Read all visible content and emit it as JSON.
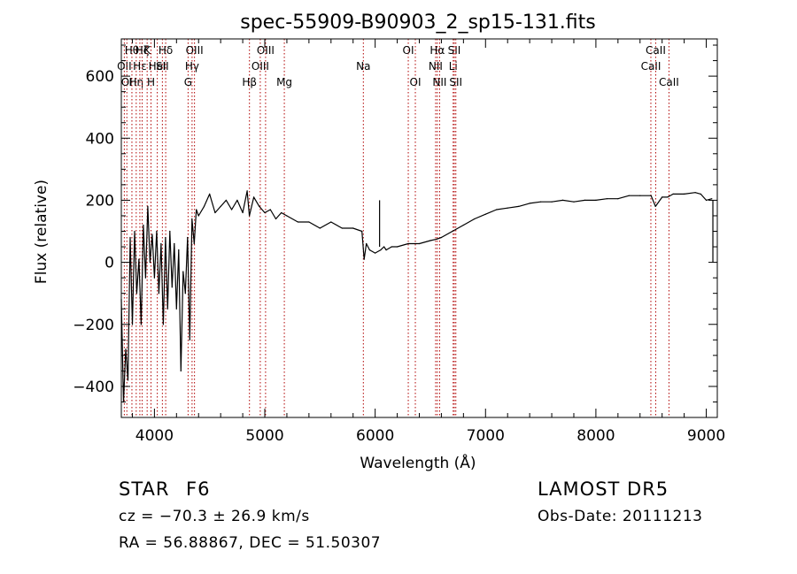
{
  "chart_data": {
    "type": "line",
    "title": "spec-55909-B90903_2_sp15-131.fits",
    "xlabel": "Wavelength (Å)",
    "ylabel": "Flux (relative)",
    "xlim": [
      3700,
      9100
    ],
    "ylim": [
      -500,
      720
    ],
    "x_ticks": [
      4000,
      5000,
      6000,
      7000,
      8000,
      9000
    ],
    "y_ticks": [
      -400,
      -200,
      0,
      200,
      400,
      600
    ],
    "series": [
      {
        "x": [
          3700,
          3720,
          3740,
          3760,
          3780,
          3800,
          3820,
          3840,
          3860,
          3880,
          3900,
          3920,
          3940,
          3960,
          3980,
          4000,
          4020,
          4040,
          4060,
          4080,
          4100,
          4120,
          4140,
          4160,
          4180,
          4200,
          4220,
          4240,
          4260,
          4280,
          4300,
          4320,
          4340,
          4360,
          4380,
          4400,
          4450,
          4500,
          4550,
          4600,
          4650,
          4700,
          4750,
          4800,
          4840,
          4860,
          4900,
          4950,
          5000,
          5050,
          5100,
          5150,
          5200,
          5300,
          5400,
          5500,
          5600,
          5700,
          5800,
          5880,
          5900,
          5920,
          5950,
          6000,
          6050,
          6080,
          6100,
          6150,
          6200,
          6300,
          6400,
          6500,
          6560,
          6600,
          6700,
          6800,
          6900,
          7000,
          7100,
          7200,
          7300,
          7400,
          7500,
          7600,
          7700,
          7800,
          7900,
          8000,
          8100,
          8200,
          8300,
          8400,
          8500,
          8540,
          8600,
          8650,
          8700,
          8800,
          8900,
          8950,
          9000,
          9050
        ],
        "y": [
          -120,
          -450,
          -280,
          -380,
          80,
          -200,
          100,
          -100,
          10,
          -200,
          120,
          -50,
          180,
          0,
          90,
          -50,
          100,
          -100,
          60,
          -200,
          80,
          -150,
          100,
          -80,
          60,
          -150,
          40,
          -350,
          -30,
          -100,
          80,
          -250,
          140,
          60,
          170,
          150,
          180,
          220,
          160,
          180,
          200,
          170,
          200,
          160,
          230,
          150,
          210,
          180,
          160,
          170,
          140,
          160,
          150,
          130,
          130,
          110,
          130,
          110,
          110,
          100,
          10,
          60,
          40,
          30,
          40,
          50,
          40,
          50,
          50,
          60,
          60,
          70,
          75,
          80,
          100,
          120,
          140,
          155,
          170,
          175,
          180,
          190,
          195,
          195,
          200,
          195,
          200,
          200,
          205,
          205,
          215,
          215,
          215,
          180,
          210,
          210,
          220,
          220,
          225,
          220,
          200,
          205
        ]
      }
    ],
    "spike": {
      "x": 6040,
      "y_from": 50,
      "y_to": 200
    },
    "tail_line": {
      "x": 9060,
      "y_from": 0,
      "y_to": 200
    },
    "lines": [
      {
        "x": 3727,
        "label": "OII",
        "row": 1
      },
      {
        "x": 3750,
        "label": "OI",
        "row": 2
      },
      {
        "x": 3796,
        "label": "Hθ",
        "row": 0
      },
      {
        "x": 3835,
        "label": "Hη",
        "row": 2
      },
      {
        "x": 3868,
        "label": "Hε",
        "row": 1
      },
      {
        "x": 3889,
        "label": "Hζ",
        "row": 0
      },
      {
        "x": 3934,
        "label": "K",
        "row": 0
      },
      {
        "x": 3969,
        "label": "H",
        "row": 2
      },
      {
        "x": 4026,
        "label": "HeI",
        "row": 1
      },
      {
        "x": 4072,
        "label": "SII",
        "row": 1
      },
      {
        "x": 4102,
        "label": "Hδ",
        "row": 0
      },
      {
        "x": 4305,
        "label": "G",
        "row": 2
      },
      {
        "x": 4341,
        "label": "Hγ",
        "row": 1
      },
      {
        "x": 4363,
        "label": "OIII",
        "row": 0
      },
      {
        "x": 4861,
        "label": "Hβ",
        "row": 2
      },
      {
        "x": 4959,
        "label": "OIII",
        "row": 1
      },
      {
        "x": 5007,
        "label": "OIII",
        "row": 0
      },
      {
        "x": 5177,
        "label": "Mg",
        "row": 2
      },
      {
        "x": 5893,
        "label": "Na",
        "row": 1
      },
      {
        "x": 6300,
        "label": "OI",
        "row": 0
      },
      {
        "x": 6364,
        "label": "OI",
        "row": 2
      },
      {
        "x": 6548,
        "label": "NII",
        "row": 1
      },
      {
        "x": 6563,
        "label": "Hα",
        "row": 0
      },
      {
        "x": 6584,
        "label": "NII",
        "row": 2
      },
      {
        "x": 6707,
        "label": "Li",
        "row": 1
      },
      {
        "x": 6717,
        "label": "SII",
        "row": 0
      },
      {
        "x": 6731,
        "label": "SII",
        "row": 2
      },
      {
        "x": 8498,
        "label": "CaII",
        "row": 1
      },
      {
        "x": 8542,
        "label": "CaII",
        "row": 0
      },
      {
        "x": 8662,
        "label": "CaII",
        "row": 2
      }
    ]
  },
  "info": {
    "class_label": "STAR",
    "subclass": "F6",
    "survey": "LAMOST DR5",
    "cz": "cz = −70.3 ± 26.9 km/s",
    "obs_date": "Obs-Date: 20111213",
    "radec": "RA =  56.88867, DEC =  51.50307"
  },
  "colors": {
    "line_marker": "#b00000",
    "spectrum": "#000000"
  }
}
